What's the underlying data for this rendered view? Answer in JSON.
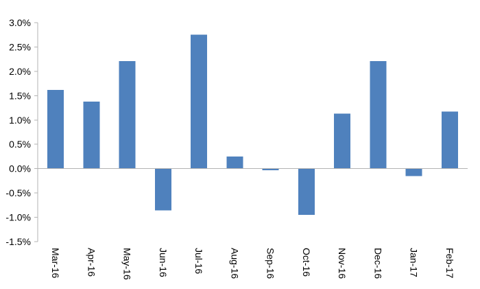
{
  "chart_data": {
    "type": "bar",
    "title": "",
    "xlabel": "",
    "ylabel": "",
    "categories": [
      "Mar-16",
      "Apr-16",
      "May-16",
      "Jun-16",
      "Jul-16",
      "Aug-16",
      "Sep-16",
      "Oct-16",
      "Nov-16",
      "Dec-16",
      "Jan-17",
      "Feb-17"
    ],
    "series": [
      {
        "values": [
          1.62,
          1.38,
          2.21,
          -0.86,
          2.75,
          0.25,
          -0.03,
          -0.95,
          1.13,
          2.21,
          -0.15,
          1.17
        ],
        "color": "#4f81bd"
      }
    ],
    "ylim": [
      -1.5,
      3.0
    ],
    "yticks": [
      3.0,
      2.5,
      2.0,
      1.5,
      1.0,
      0.5,
      0.0,
      -0.5,
      -1.0,
      -1.5
    ],
    "ytick_labels": [
      "3.0%",
      "2.5%",
      "2.0%",
      "1.5%",
      "1.0%",
      "0.5%",
      "0.0%",
      "-0.5%",
      "-1.0%",
      "-1.5%"
    ],
    "grid": false,
    "legend": "none"
  }
}
